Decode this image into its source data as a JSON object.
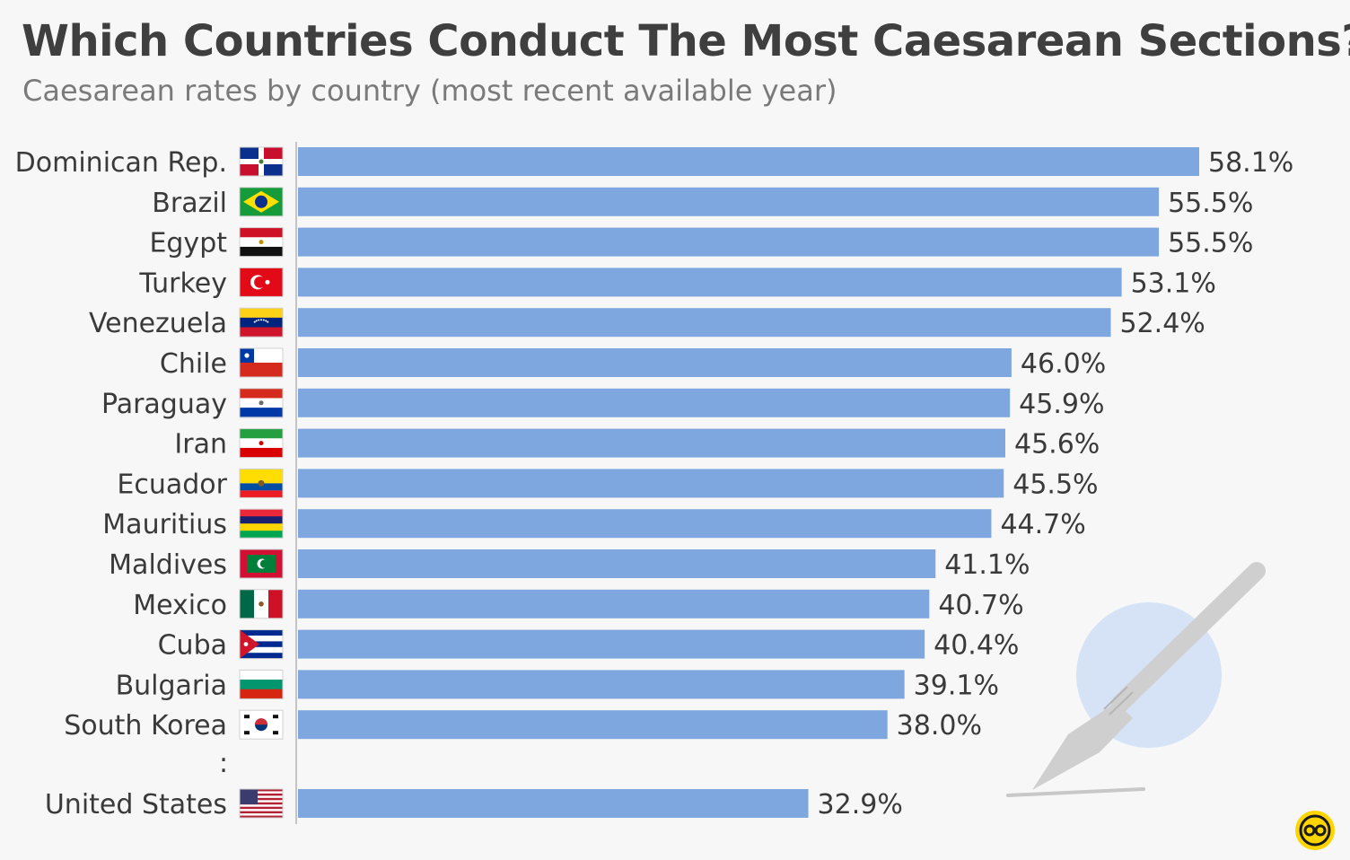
{
  "chart_data": {
    "type": "bar",
    "orientation": "horizontal",
    "title": "Which Countries Conduct The Most Caesarean Sections?",
    "subtitle": "Caesarean rates by country (most recent available year)",
    "categories": [
      "Dominican Rep.",
      "Brazil",
      "Egypt",
      "Turkey",
      "Venezuela",
      "Chile",
      "Paraguay",
      "Iran",
      "Ecuador",
      "Mauritius",
      "Maldives",
      "Mexico",
      "Cuba",
      "Bulgaria",
      "South Korea",
      "United States"
    ],
    "values": [
      58.1,
      55.5,
      55.5,
      53.1,
      52.4,
      46.0,
      45.9,
      45.6,
      45.5,
      44.7,
      41.1,
      40.7,
      40.4,
      39.1,
      38.0,
      32.9
    ],
    "value_labels": [
      "58.1%",
      "55.5%",
      "55.5%",
      "53.1%",
      "52.4%",
      "46.0%",
      "45.9%",
      "45.6%",
      "45.5%",
      "44.7%",
      "41.1%",
      "40.7%",
      "40.4%",
      "39.1%",
      "38.0%",
      "32.9%"
    ],
    "flags": [
      "dominican-republic",
      "brazil",
      "egypt",
      "turkey",
      "venezuela",
      "chile",
      "paraguay",
      "iran",
      "ecuador",
      "mauritius",
      "maldives",
      "mexico",
      "cuba",
      "bulgaria",
      "south-korea",
      "united-states"
    ],
    "gap_marker": ":",
    "xlim": [
      0,
      58.1
    ],
    "grid": false,
    "legend": "none",
    "bar_color": "#7fa7df"
  },
  "decoration": {
    "illustration": "scalpel-icon",
    "logo": "statista-logo-icon"
  }
}
